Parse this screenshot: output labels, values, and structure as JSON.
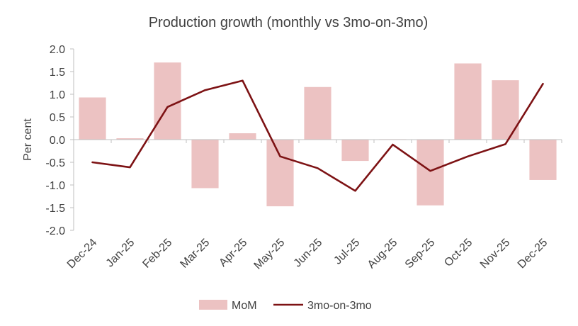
{
  "chart_data": {
    "type": "bar",
    "title": "Production growth (monthly vs 3mo-on-3mo)",
    "ylabel": "Per cent",
    "xlabel": "",
    "ylim": [
      -2.0,
      2.0
    ],
    "yticks": [
      "2.0",
      "1.5",
      "1.0",
      "0.5",
      "0.0",
      "-0.5",
      "-1.0",
      "-1.5",
      "-2.0"
    ],
    "categories": [
      "Dec-24",
      "Jan-25",
      "Feb-25",
      "Mar-25",
      "Apr-25",
      "May-25",
      "Jun-25",
      "Jul-25",
      "Aug-25",
      "Sep-25",
      "Oct-25",
      "Nov-25",
      "Dec-25"
    ],
    "series": [
      {
        "name": "MoM",
        "type": "bar",
        "color": "#ecc2c2",
        "values": [
          0.93,
          0.03,
          1.7,
          -1.07,
          0.14,
          -1.47,
          1.16,
          -0.47,
          0.01,
          -1.45,
          1.68,
          1.31,
          -0.89
        ]
      },
      {
        "name": "3mo-on-3mo",
        "type": "line",
        "color": "#7d1214",
        "values": [
          -0.5,
          -0.61,
          0.72,
          1.09,
          1.3,
          -0.37,
          -0.63,
          -1.13,
          -0.11,
          -0.69,
          -0.37,
          -0.1,
          1.23
        ]
      }
    ],
    "grid": false,
    "legend_position": "bottom-center"
  }
}
